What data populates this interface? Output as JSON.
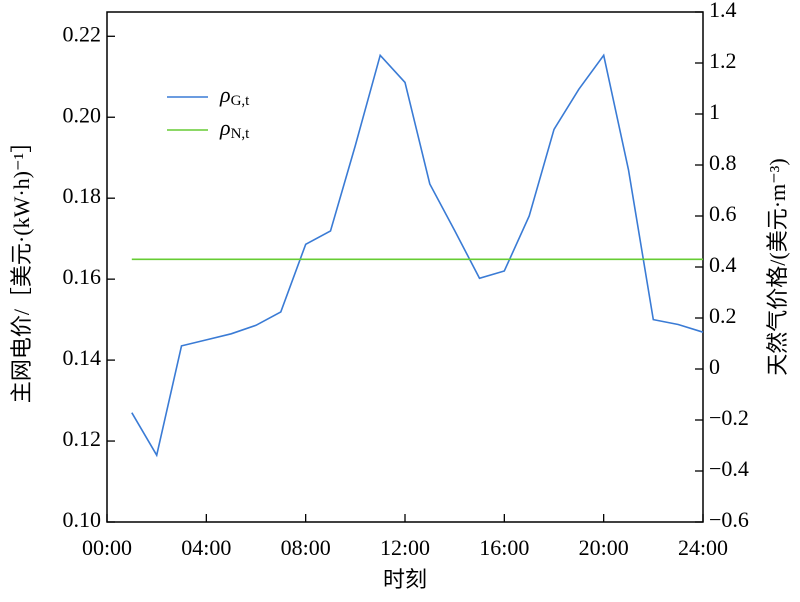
{
  "chart_data": {
    "type": "line",
    "x_label": "时刻",
    "y_label": "主网电价/［美元·(kW·h)⁻¹］",
    "y2_label": "天然气价格/(美元·m⁻³)",
    "x": [
      1,
      2,
      3,
      4,
      5,
      6,
      7,
      8,
      9,
      10,
      11,
      12,
      13,
      14,
      15,
      16,
      17,
      18,
      19,
      20,
      21,
      22,
      23,
      24
    ],
    "series": [
      {
        "name": "ρG,t",
        "color": "#3a7bd5",
        "values": [
          0.127,
          0.1165,
          0.1435,
          0.145,
          0.1465,
          0.1486,
          0.1519,
          0.1686,
          0.1719,
          0.193,
          0.2153,
          0.2086,
          0.1835,
          0.172,
          0.1602,
          0.162,
          0.1756,
          0.197,
          0.2069,
          0.2153,
          0.187,
          0.15,
          0.1488,
          0.1469
        ]
      },
      {
        "name": "ρN,t",
        "color": "#66cc33",
        "axis": "y2",
        "values": [
          0.43,
          0.43,
          0.43,
          0.43,
          0.43,
          0.43,
          0.43,
          0.43,
          0.43,
          0.43,
          0.43,
          0.43,
          0.43,
          0.43,
          0.43,
          0.43,
          0.43,
          0.43,
          0.43,
          0.43,
          0.43,
          0.43,
          0.43,
          0.43
        ]
      }
    ],
    "xlim": [
      0,
      24
    ],
    "xticks": [
      {
        "value": 0,
        "label": "00:00"
      },
      {
        "value": 4,
        "label": "04:00"
      },
      {
        "value": 8,
        "label": "08:00"
      },
      {
        "value": 12,
        "label": "12:00"
      },
      {
        "value": 16,
        "label": "16:00"
      },
      {
        "value": 20,
        "label": "20:00"
      },
      {
        "value": 24,
        "label": "24:00"
      }
    ],
    "ylim": [
      0.1,
      0.226
    ],
    "yticks": [
      {
        "value": 0.1,
        "label": "0.10"
      },
      {
        "value": 0.12,
        "label": "0.12"
      },
      {
        "value": 0.14,
        "label": "0.14"
      },
      {
        "value": 0.16,
        "label": "0.16"
      },
      {
        "value": 0.18,
        "label": "0.18"
      },
      {
        "value": 0.2,
        "label": "0.20"
      },
      {
        "value": 0.22,
        "label": "0.22"
      }
    ],
    "y2lim": [
      -0.6,
      1.4
    ],
    "y2ticks": [
      {
        "value": -0.6,
        "label": "−0.6"
      },
      {
        "value": -0.4,
        "label": "−0.4"
      },
      {
        "value": -0.2,
        "label": "−0.2"
      },
      0,
      0.2,
      0.4,
      0.6,
      0.8,
      1,
      1.2,
      1.4
    ],
    "legend": "upper left"
  }
}
